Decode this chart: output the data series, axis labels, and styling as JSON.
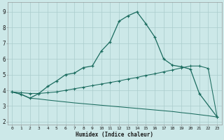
{
  "bg_color": "#cce8e8",
  "grid_color": "#aacccc",
  "line_color": "#1a6b5e",
  "x_data": [
    0,
    1,
    2,
    3,
    4,
    5,
    6,
    7,
    8,
    9,
    10,
    11,
    12,
    13,
    14,
    15,
    16,
    17,
    18,
    19,
    20,
    21,
    22,
    23
  ],
  "line1_y": [
    3.9,
    3.75,
    3.5,
    3.8,
    4.25,
    4.6,
    5.0,
    5.1,
    5.45,
    5.55,
    6.5,
    7.1,
    8.4,
    8.75,
    9.0,
    8.25,
    7.4,
    6.0,
    5.6,
    5.5,
    5.35,
    3.8,
    2.3
  ],
  "line1_x": [
    0,
    1,
    2,
    3,
    4,
    5,
    6,
    7,
    8,
    9,
    10,
    11,
    12,
    13,
    14,
    15,
    16,
    17,
    18,
    19,
    20,
    21,
    23
  ],
  "line2_y": [
    3.9,
    3.85,
    3.8,
    3.8,
    3.85,
    3.9,
    4.0,
    4.1,
    4.2,
    4.3,
    4.4,
    4.5,
    4.6,
    4.72,
    4.82,
    4.95,
    5.05,
    5.18,
    5.3,
    5.43,
    5.55,
    5.55,
    5.4,
    2.3
  ],
  "line3_y": [
    3.9,
    3.75,
    3.5,
    3.45,
    3.38,
    3.32,
    3.26,
    3.2,
    3.15,
    3.1,
    3.05,
    3.0,
    2.95,
    2.9,
    2.85,
    2.8,
    2.75,
    2.7,
    2.65,
    2.58,
    2.52,
    2.45,
    2.38,
    2.3
  ],
  "xlabel": "Humidex (Indice chaleur)",
  "xlim": [
    -0.5,
    23.5
  ],
  "ylim": [
    1.8,
    9.6
  ],
  "yticks": [
    2,
    3,
    4,
    5,
    6,
    7,
    8,
    9
  ],
  "xticks": [
    0,
    1,
    2,
    3,
    4,
    5,
    6,
    7,
    8,
    9,
    10,
    11,
    12,
    13,
    14,
    15,
    16,
    17,
    18,
    19,
    20,
    21,
    22,
    23
  ],
  "figsize": [
    3.2,
    2.0
  ],
  "dpi": 100
}
